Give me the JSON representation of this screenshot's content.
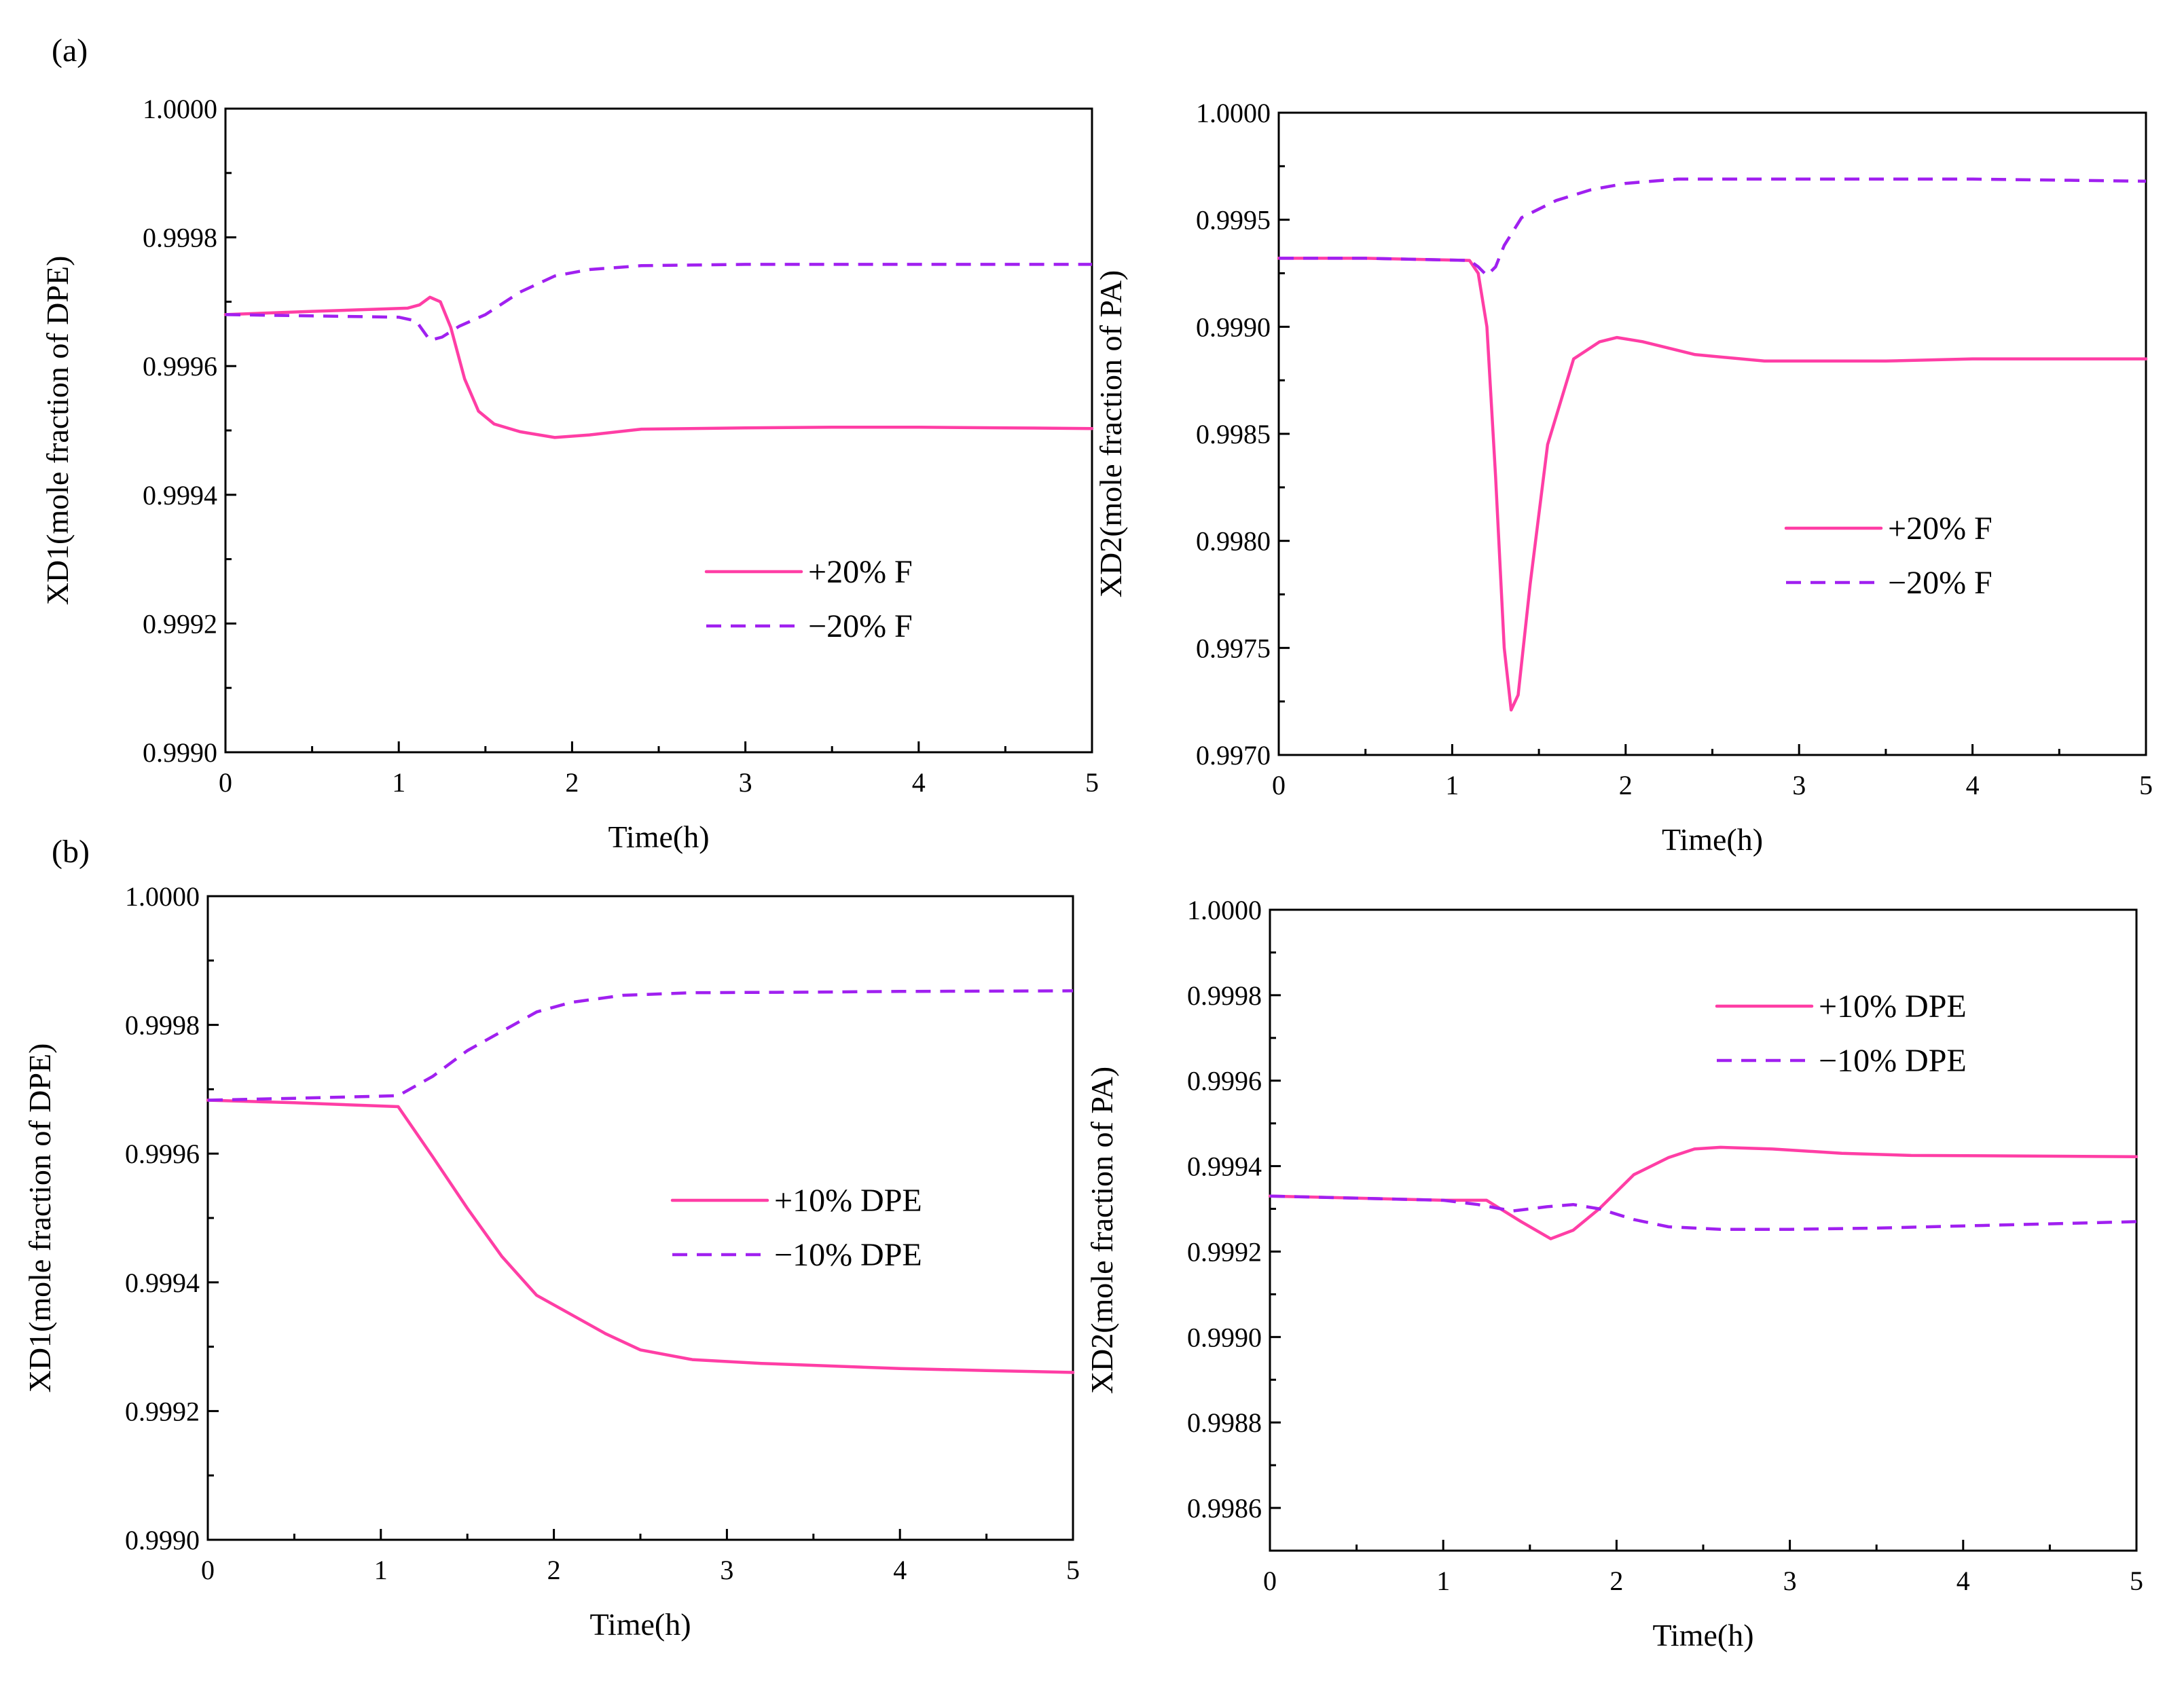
{
  "panel_labels": {
    "a": "(a)",
    "b": "(b)"
  },
  "colors": {
    "solid": "#ff3ea5",
    "dashed": "#a020f0"
  },
  "chart_data": [
    {
      "type": "line",
      "panel": "(a)",
      "title": "",
      "xlabel": "Time(h)",
      "ylabel": "XD1(mole fraction of  DPE)",
      "xlim": [
        0,
        5
      ],
      "ylim": [
        0.999,
        1.0
      ],
      "xticks": [
        0,
        1,
        2,
        3,
        4,
        5
      ],
      "yticks": [
        0.999,
        0.9992,
        0.9994,
        0.9996,
        0.9998,
        1.0
      ],
      "ytick_labels": [
        "0.9990",
        "0.9992",
        "0.9994",
        "0.9996",
        "0.9998",
        "1.0000"
      ],
      "yticks_minor": [
        0.9991,
        0.9993,
        0.9995,
        0.9997,
        0.9999
      ],
      "legend_position": "center-right",
      "series": [
        {
          "name": "+20% F",
          "style": "solid",
          "x": [
            0,
            0.5,
            1.05,
            1.12,
            1.18,
            1.24,
            1.3,
            1.38,
            1.46,
            1.55,
            1.7,
            1.9,
            2.1,
            2.4,
            3.0,
            3.5,
            4.0,
            4.5,
            5.0
          ],
          "y": [
            0.99968,
            0.999685,
            0.99969,
            0.999695,
            0.999707,
            0.9997,
            0.99966,
            0.99958,
            0.99953,
            0.99951,
            0.999498,
            0.999489,
            0.999493,
            0.999502,
            0.999504,
            0.999505,
            0.999505,
            0.999504,
            0.999503
          ]
        },
        {
          "name": "−20% F",
          "style": "dashed",
          "x": [
            0,
            0.5,
            1.0,
            1.1,
            1.18,
            1.25,
            1.35,
            1.5,
            1.7,
            1.9,
            2.1,
            2.4,
            3.0,
            4.0,
            5.0
          ],
          "y": [
            0.99968,
            0.999678,
            0.999676,
            0.99967,
            0.99964,
            0.999645,
            0.999662,
            0.99968,
            0.999715,
            0.99974,
            0.99975,
            0.999756,
            0.999758,
            0.999758,
            0.999758
          ]
        }
      ]
    },
    {
      "type": "line",
      "panel": "(a)",
      "title": "",
      "xlabel": "Time(h)",
      "ylabel": "XD2(mole fraction of  PA)",
      "xlim": [
        0,
        5
      ],
      "ylim": [
        0.997,
        1.0
      ],
      "xticks": [
        0,
        1,
        2,
        3,
        4,
        5
      ],
      "yticks": [
        0.997,
        0.9975,
        0.998,
        0.9985,
        0.999,
        0.9995,
        1.0
      ],
      "ytick_labels": [
        "0.9970",
        "0.9975",
        "0.9980",
        "0.9985",
        "0.9990",
        "0.9995",
        "1.0000"
      ],
      "yticks_minor": [
        0.99725,
        0.99775,
        0.99825,
        0.99875,
        0.99925,
        0.99975
      ],
      "legend_position": "center-right",
      "series": [
        {
          "name": "+20% F",
          "style": "solid",
          "x": [
            0,
            0.5,
            1.1,
            1.15,
            1.2,
            1.25,
            1.3,
            1.34,
            1.38,
            1.45,
            1.55,
            1.7,
            1.85,
            1.95,
            2.1,
            2.4,
            2.8,
            3.5,
            4.0,
            5.0
          ],
          "y": [
            0.99932,
            0.99932,
            0.99931,
            0.99925,
            0.999,
            0.9983,
            0.9975,
            0.99721,
            0.99728,
            0.9978,
            0.99845,
            0.99885,
            0.99893,
            0.99895,
            0.99893,
            0.99887,
            0.99884,
            0.99884,
            0.99885,
            0.99885
          ]
        },
        {
          "name": "−20% F",
          "style": "dashed",
          "x": [
            0,
            0.5,
            1.1,
            1.15,
            1.2,
            1.25,
            1.3,
            1.4,
            1.6,
            1.8,
            2.0,
            2.3,
            2.5,
            3.0,
            4.0,
            5.0
          ],
          "y": [
            0.99932,
            0.99932,
            0.99931,
            0.99928,
            0.99924,
            0.99928,
            0.99938,
            0.99951,
            0.99959,
            0.99964,
            0.99967,
            0.99969,
            0.99969,
            0.99969,
            0.99969,
            0.99968
          ]
        }
      ]
    },
    {
      "type": "line",
      "panel": "(b)",
      "title": "",
      "xlabel": "Time(h)",
      "ylabel": "XD1(mole fraction of  DPE)",
      "xlim": [
        0,
        5
      ],
      "ylim": [
        0.999,
        1.0
      ],
      "xticks": [
        0,
        1,
        2,
        3,
        4,
        5
      ],
      "yticks": [
        0.999,
        0.9992,
        0.9994,
        0.9996,
        0.9998,
        1.0
      ],
      "ytick_labels": [
        "0.9990",
        "0.9992",
        "0.9994",
        "0.9996",
        "0.9998",
        "1.0000"
      ],
      "yticks_minor": [
        0.9991,
        0.9993,
        0.9995,
        0.9997,
        0.9999
      ],
      "legend_position": "center-right",
      "series": [
        {
          "name": "+10% DPE",
          "style": "solid",
          "x": [
            0,
            0.5,
            1.1,
            1.3,
            1.5,
            1.7,
            1.9,
            2.1,
            2.3,
            2.5,
            2.8,
            3.2,
            3.6,
            4.0,
            4.5,
            5.0
          ],
          "y": [
            0.999683,
            0.999679,
            0.999673,
            0.999595,
            0.999515,
            0.99944,
            0.99938,
            0.99935,
            0.99932,
            0.999295,
            0.99928,
            0.999274,
            0.99927,
            0.999266,
            0.999263,
            0.99926
          ]
        },
        {
          "name": "−10% DPE",
          "style": "dashed",
          "x": [
            0,
            0.5,
            1.1,
            1.3,
            1.5,
            1.7,
            1.9,
            2.1,
            2.4,
            2.8,
            3.5,
            4.0,
            5.0
          ],
          "y": [
            0.999683,
            0.999686,
            0.99969,
            0.99972,
            0.99976,
            0.99979,
            0.99982,
            0.999835,
            0.999846,
            0.99985,
            0.999851,
            0.999852,
            0.999853
          ]
        }
      ]
    },
    {
      "type": "line",
      "panel": "(b)",
      "title": "",
      "xlabel": "Time(h)",
      "ylabel": "XD2(mole fraction of  PA)",
      "xlim": [
        0,
        5
      ],
      "ylim": [
        0.9985,
        1.0
      ],
      "xticks": [
        0,
        1,
        2,
        3,
        4,
        5
      ],
      "yticks": [
        0.9986,
        0.9988,
        0.999,
        0.9992,
        0.9994,
        0.9996,
        0.9998,
        1.0
      ],
      "ytick_labels": [
        "0.9986",
        "0.9988",
        "0.9990",
        "0.9992",
        "0.9994",
        "0.9996",
        "0.9998",
        "1.0000"
      ],
      "yticks_minor": [
        0.9987,
        0.9989,
        0.9991,
        0.9993,
        0.9995,
        0.9997,
        0.9999
      ],
      "legend_position": "top-right",
      "series": [
        {
          "name": "+10% DPE",
          "style": "solid",
          "x": [
            0,
            0.5,
            1.0,
            1.25,
            1.45,
            1.62,
            1.75,
            1.9,
            2.1,
            2.3,
            2.45,
            2.6,
            2.9,
            3.3,
            3.7,
            4.2,
            5.0
          ],
          "y": [
            0.99933,
            0.999325,
            0.99932,
            0.99932,
            0.99927,
            0.99923,
            0.99925,
            0.9993,
            0.99938,
            0.99942,
            0.99944,
            0.999444,
            0.99944,
            0.99943,
            0.999425,
            0.999424,
            0.999422
          ]
        },
        {
          "name": "−10% DPE",
          "style": "dashed",
          "x": [
            0,
            0.5,
            1.0,
            1.2,
            1.4,
            1.6,
            1.75,
            1.9,
            2.1,
            2.3,
            2.6,
            3.0,
            3.5,
            4.0,
            4.5,
            5.0
          ],
          "y": [
            0.99933,
            0.999325,
            0.99932,
            0.99931,
            0.999295,
            0.999305,
            0.99931,
            0.9993,
            0.999275,
            0.999258,
            0.999252,
            0.999252,
            0.999255,
            0.99926,
            0.999265,
            0.99927
          ]
        }
      ]
    }
  ]
}
